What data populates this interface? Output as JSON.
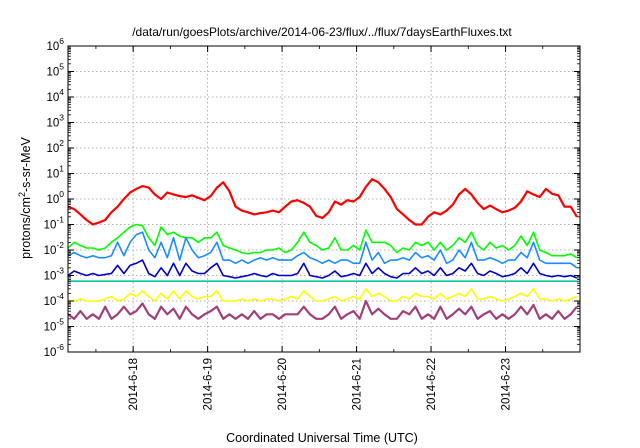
{
  "chart_data": {
    "type": "line",
    "title": "/data/run/goesPlots/archive/2014-06-23/flux/../flux/7daysEarthFluxes.txt",
    "xlabel": "Coordinated Universal Time (UTC)",
    "ylabel": "protons/cm²-s-sr-MeV",
    "ylabel_parts": {
      "pre": "protons/cm",
      "sup": "2",
      "post": "-s-sr-MeV"
    },
    "yscale": "log",
    "ylim_exp": [
      -6,
      6
    ],
    "y_tick_labels": [
      {
        "base": "10",
        "exp": "-6"
      },
      {
        "base": "10",
        "exp": "-5"
      },
      {
        "base": "10",
        "exp": "-4"
      },
      {
        "base": "10",
        "exp": "-3"
      },
      {
        "base": "10",
        "exp": "-2"
      },
      {
        "base": "10",
        "exp": "-1"
      },
      {
        "base": "10",
        "exp": "0"
      },
      {
        "base": "10",
        "exp": "1"
      },
      {
        "base": "10",
        "exp": "2"
      },
      {
        "base": "10",
        "exp": "3"
      },
      {
        "base": "10",
        "exp": "4"
      },
      {
        "base": "10",
        "exp": "5"
      },
      {
        "base": "10",
        "exp": "6"
      }
    ],
    "xlim": [
      "2014-06-17T03:00",
      "2014-06-24T00:00"
    ],
    "x_ticks": [
      "2014-6-18",
      "2014-6-19",
      "2014-6-20",
      "2014-6-21",
      "2014-6-22",
      "2014-6-23"
    ],
    "x_tick_dates": [
      "2014-06-18",
      "2014-06-19",
      "2014-06-20",
      "2014-06-21",
      "2014-06-22",
      "2014-06-23"
    ],
    "grid": true,
    "x": [
      "2014-06-17T03:00",
      "2014-06-17T05:00",
      "2014-06-17T07:00",
      "2014-06-17T09:00",
      "2014-06-17T11:00",
      "2014-06-17T13:00",
      "2014-06-17T15:00",
      "2014-06-17T17:00",
      "2014-06-17T19:00",
      "2014-06-17T21:00",
      "2014-06-17T23:00",
      "2014-06-18T01:00",
      "2014-06-18T03:00",
      "2014-06-18T05:00",
      "2014-06-18T07:00",
      "2014-06-18T09:00",
      "2014-06-18T11:00",
      "2014-06-18T13:00",
      "2014-06-18T15:00",
      "2014-06-18T17:00",
      "2014-06-18T19:00",
      "2014-06-18T21:00",
      "2014-06-18T23:00",
      "2014-06-19T01:00",
      "2014-06-19T03:00",
      "2014-06-19T05:00",
      "2014-06-19T07:00",
      "2014-06-19T09:00",
      "2014-06-19T11:00",
      "2014-06-19T13:00",
      "2014-06-19T15:00",
      "2014-06-19T17:00",
      "2014-06-19T19:00",
      "2014-06-19T21:00",
      "2014-06-19T23:00",
      "2014-06-20T01:00",
      "2014-06-20T03:00",
      "2014-06-20T05:00",
      "2014-06-20T07:00",
      "2014-06-20T09:00",
      "2014-06-20T11:00",
      "2014-06-20T13:00",
      "2014-06-20T15:00",
      "2014-06-20T17:00",
      "2014-06-20T19:00",
      "2014-06-20T21:00",
      "2014-06-20T23:00",
      "2014-06-21T01:00",
      "2014-06-21T03:00",
      "2014-06-21T05:00",
      "2014-06-21T07:00",
      "2014-06-21T09:00",
      "2014-06-21T11:00",
      "2014-06-21T13:00",
      "2014-06-21T15:00",
      "2014-06-21T17:00",
      "2014-06-21T19:00",
      "2014-06-21T21:00",
      "2014-06-21T23:00",
      "2014-06-22T01:00",
      "2014-06-22T03:00",
      "2014-06-22T05:00",
      "2014-06-22T07:00",
      "2014-06-22T09:00",
      "2014-06-22T11:00",
      "2014-06-22T13:00",
      "2014-06-22T15:00",
      "2014-06-22T17:00",
      "2014-06-22T19:00",
      "2014-06-22T21:00",
      "2014-06-22T23:00",
      "2014-06-23T01:00",
      "2014-06-23T03:00",
      "2014-06-23T05:00",
      "2014-06-23T07:00",
      "2014-06-23T09:00",
      "2014-06-23T11:00",
      "2014-06-23T13:00",
      "2014-06-23T15:00",
      "2014-06-23T17:00",
      "2014-06-23T19:00",
      "2014-06-23T21:00",
      "2014-06-23T23:00"
    ],
    "series": [
      {
        "color": "#ff0000",
        "width": 2.2,
        "values": [
          0.5,
          0.4,
          0.25,
          0.15,
          0.1,
          0.12,
          0.15,
          0.3,
          0.5,
          1,
          1.8,
          2.5,
          3.2,
          2.8,
          1.5,
          1,
          1.8,
          1.5,
          1.3,
          1.2,
          1.4,
          1.1,
          0.9,
          1.3,
          2.8,
          4.5,
          2,
          0.5,
          0.35,
          0.3,
          0.25,
          0.28,
          0.3,
          0.35,
          0.3,
          0.5,
          0.8,
          0.9,
          0.7,
          0.5,
          0.22,
          0.18,
          0.3,
          0.8,
          0.6,
          0.9,
          0.8,
          1.2,
          3,
          6,
          4.5,
          2.5,
          1.2,
          0.4,
          0.25,
          0.15,
          0.1,
          0.1,
          0.2,
          0.3,
          0.25,
          0.35,
          0.6,
          1.5,
          2.5,
          1.5,
          0.7,
          0.4,
          0.55,
          0.4,
          0.3,
          0.35,
          0.45,
          0.8,
          2,
          1.5,
          1.2,
          2.5,
          1.6,
          1.4,
          0.5,
          0.5,
          0.2
        ]
      },
      {
        "color": "#00ff00",
        "width": 1.6,
        "values": [
          0.012,
          0.02,
          0.015,
          0.012,
          0.012,
          0.01,
          0.012,
          0.02,
          0.03,
          0.05,
          0.08,
          0.1,
          0.09,
          0.03,
          0.015,
          0.08,
          0.04,
          0.05,
          0.035,
          0.03,
          0.03,
          0.02,
          0.03,
          0.03,
          0.05,
          0.015,
          0.012,
          0.01,
          0.008,
          0.007,
          0.008,
          0.008,
          0.01,
          0.01,
          0.012,
          0.008,
          0.01,
          0.02,
          0.05,
          0.02,
          0.015,
          0.01,
          0.012,
          0.03,
          0.01,
          0.01,
          0.015,
          0.01,
          0.06,
          0.02,
          0.02,
          0.02,
          0.015,
          0.008,
          0.012,
          0.01,
          0.02,
          0.015,
          0.02,
          0.01,
          0.02,
          0.01,
          0.015,
          0.03,
          0.02,
          0.05,
          0.015,
          0.01,
          0.02,
          0.012,
          0.015,
          0.01,
          0.015,
          0.035,
          0.015,
          0.05,
          0.01,
          0.008,
          0.006,
          0.006,
          0.006,
          0.007,
          0.005
        ]
      },
      {
        "color": "#1a8cff",
        "width": 1.6,
        "values": [
          0.006,
          0.008,
          0.006,
          0.005,
          0.006,
          0.005,
          0.005,
          0.006,
          0.02,
          0.006,
          0.02,
          0.04,
          0.05,
          0.01,
          0.005,
          0.02,
          0.005,
          0.03,
          0.004,
          0.03,
          0.01,
          0.005,
          0.006,
          0.008,
          0.02,
          0.004,
          0.004,
          0.003,
          0.004,
          0.003,
          0.004,
          0.005,
          0.004,
          0.005,
          0.004,
          0.004,
          0.004,
          0.006,
          0.008,
          0.005,
          0.004,
          0.003,
          0.004,
          0.003,
          0.004,
          0.004,
          0.003,
          0.003,
          0.02,
          0.004,
          0.008,
          0.003,
          0.004,
          0.004,
          0.005,
          0.004,
          0.008,
          0.005,
          0.006,
          0.004,
          0.01,
          0.003,
          0.004,
          0.01,
          0.005,
          0.02,
          0.004,
          0.004,
          0.005,
          0.004,
          0.003,
          0.004,
          0.004,
          0.008,
          0.005,
          0.02,
          0.004,
          0.003,
          0.003,
          0.003,
          0.003,
          0.003,
          0.002
        ]
      },
      {
        "color": "#0000cc",
        "width": 1.6,
        "values": [
          0.001,
          0.0015,
          0.0012,
          0.001,
          0.0012,
          0.001,
          0.0011,
          0.0012,
          0.0025,
          0.0012,
          0.0025,
          0.003,
          0.004,
          0.0012,
          0.0009,
          0.002,
          0.001,
          0.003,
          0.001,
          0.003,
          0.0015,
          0.0012,
          0.0012,
          0.002,
          0.003,
          0.001,
          0.0009,
          0.0008,
          0.0009,
          0.001,
          0.0012,
          0.001,
          0.0009,
          0.0012,
          0.001,
          0.001,
          0.001,
          0.0012,
          0.003,
          0.001,
          0.0009,
          0.0008,
          0.001,
          0.0015,
          0.0009,
          0.001,
          0.0012,
          0.001,
          0.003,
          0.0012,
          0.002,
          0.0012,
          0.0009,
          0.0008,
          0.0012,
          0.0012,
          0.002,
          0.0012,
          0.0015,
          0.001,
          0.002,
          0.001,
          0.0012,
          0.002,
          0.0015,
          0.003,
          0.0012,
          0.001,
          0.0015,
          0.0012,
          0.0009,
          0.001,
          0.0012,
          0.002,
          0.0012,
          0.003,
          0.0012,
          0.001,
          0.0009,
          0.001,
          0.0009,
          0.001,
          0.0008
        ]
      },
      {
        "color": "#00c8a0",
        "width": 1.6,
        "values": [
          0.0006,
          0.0006,
          0.0006,
          0.0006,
          0.0006,
          0.0006,
          0.0006,
          0.0006,
          0.0006,
          0.0006,
          0.0006,
          0.0006,
          0.0006,
          0.0006,
          0.0006,
          0.0006,
          0.0006,
          0.0006,
          0.0006,
          0.0006,
          0.0006,
          0.0006,
          0.0006,
          0.0006,
          0.0006,
          0.0006,
          0.0006,
          0.0006,
          0.0006,
          0.0006,
          0.0006,
          0.0006,
          0.0006,
          0.0006,
          0.0006,
          0.0006,
          0.0006,
          0.0006,
          0.0006,
          0.0006,
          0.0006,
          0.0006,
          0.0006,
          0.0006,
          0.0006,
          0.0006,
          0.0006,
          0.0006,
          0.0006,
          0.0006,
          0.0006,
          0.0006,
          0.0006,
          0.0006,
          0.0006,
          0.0006,
          0.0006,
          0.0006,
          0.0006,
          0.0006,
          0.0006,
          0.0006,
          0.0006,
          0.0006,
          0.0006,
          0.0006,
          0.0006,
          0.0006,
          0.0006,
          0.0006,
          0.0006,
          0.0006,
          0.0006,
          0.0006,
          0.0006,
          0.0006,
          0.0006,
          0.0006,
          0.0006,
          0.0006,
          0.0006,
          0.0006,
          0.0006
        ]
      },
      {
        "color": "#ffff00",
        "width": 1.6,
        "values": [
          0.0001,
          0.0001,
          0.00012,
          0.0001,
          0.0001,
          0.0001,
          0.00012,
          0.00015,
          0.0001,
          0.00012,
          0.0002,
          0.00015,
          0.00025,
          0.00015,
          0.0001,
          0.0002,
          0.00012,
          0.00025,
          0.00012,
          0.00025,
          0.00015,
          0.00012,
          0.00015,
          0.00015,
          0.00025,
          0.0001,
          0.0001,
          0.0001,
          0.00012,
          0.0001,
          0.00012,
          0.0001,
          0.00012,
          0.00012,
          0.0001,
          0.00012,
          0.00015,
          0.00012,
          0.00025,
          0.00015,
          0.0001,
          0.0001,
          0.00012,
          0.00015,
          0.0001,
          0.00012,
          0.00015,
          0.00012,
          0.0003,
          0.00015,
          0.0002,
          0.00015,
          0.0001,
          0.0001,
          0.00015,
          0.00012,
          0.0002,
          0.00015,
          0.00015,
          0.00012,
          0.0002,
          0.00012,
          0.00015,
          0.0002,
          0.00015,
          0.0003,
          0.00012,
          0.00012,
          0.00015,
          0.00012,
          0.0001,
          0.00012,
          0.00015,
          0.0002,
          0.00015,
          0.0003,
          0.00012,
          0.00012,
          0.0001,
          0.00012,
          0.0001,
          0.00012,
          0.00015
        ]
      },
      {
        "color": "#a0407a",
        "width": 2.2,
        "values": [
          3e-05,
          2e-05,
          4e-05,
          2e-05,
          3e-05,
          2e-05,
          6e-05,
          2e-05,
          3e-05,
          6e-05,
          3e-05,
          4e-05,
          8e-05,
          3e-05,
          2e-05,
          6e-05,
          3e-05,
          5e-05,
          2e-05,
          6e-05,
          3e-05,
          2e-05,
          3e-05,
          4e-05,
          6e-05,
          2e-05,
          3e-05,
          2e-05,
          3e-05,
          2e-05,
          4e-05,
          2e-05,
          3e-05,
          3e-05,
          2e-05,
          3e-05,
          3e-05,
          3e-05,
          6e-05,
          3e-05,
          2e-05,
          2e-05,
          3e-05,
          6e-05,
          2e-05,
          3e-05,
          4e-05,
          2e-05,
          0.0001,
          3e-05,
          5e-05,
          3e-05,
          2e-05,
          2e-05,
          4e-05,
          3e-05,
          6e-05,
          2e-05,
          3e-05,
          2e-05,
          6e-05,
          2e-05,
          3e-05,
          5e-05,
          3e-05,
          6e-05,
          2e-05,
          3e-05,
          4e-05,
          2e-05,
          3e-05,
          2e-05,
          3e-05,
          6e-05,
          3e-05,
          7e-05,
          2e-05,
          3e-05,
          2e-05,
          4e-05,
          2e-05,
          3e-05,
          6e-05
        ]
      }
    ]
  }
}
